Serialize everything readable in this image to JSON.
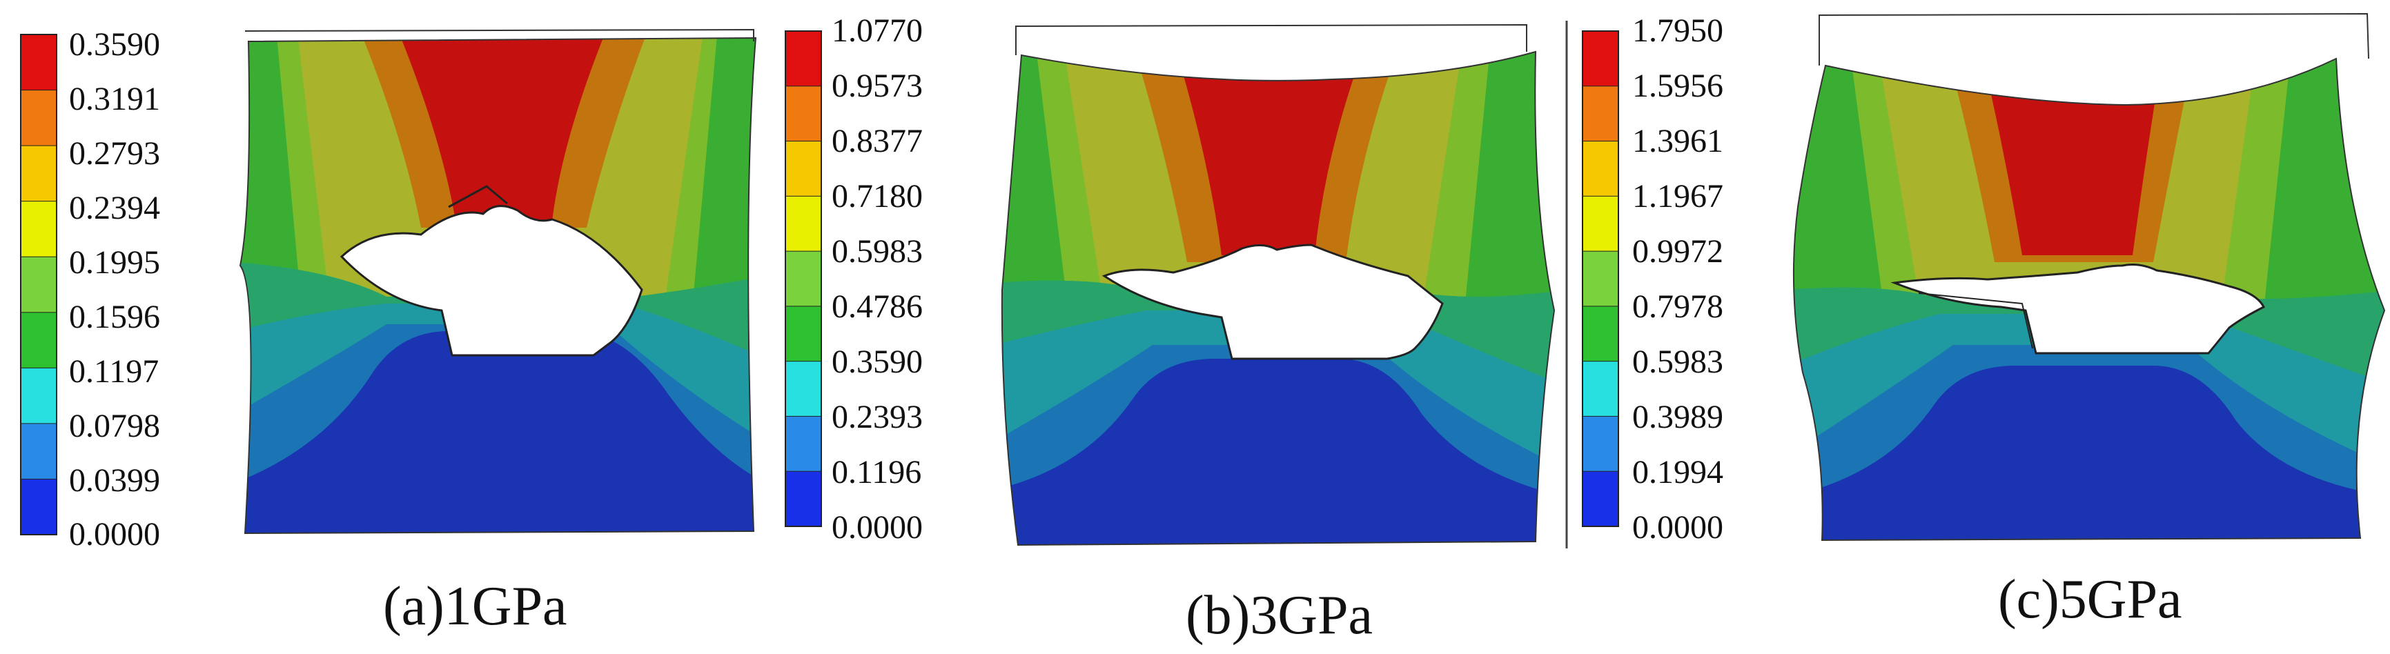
{
  "panels": [
    {
      "caption": "(a)1GPa",
      "legend_ticks": [
        "0.3590",
        "0.3191",
        "0.2793",
        "0.2394",
        "0.1995",
        "0.1596",
        "0.1197",
        "0.0798",
        "0.0399",
        "0.0000"
      ]
    },
    {
      "caption": "(b)3GPa",
      "legend_ticks": [
        "1.0770",
        "0.9573",
        "0.8377",
        "0.7180",
        "0.5983",
        "0.4786",
        "0.3590",
        "0.2393",
        "0.1196",
        "0.0000"
      ]
    },
    {
      "caption": "(c)5GPa",
      "legend_ticks": [
        "1.7950",
        "1.5956",
        "1.3961",
        "1.1967",
        "0.9972",
        "0.7978",
        "0.5983",
        "0.3989",
        "0.1994",
        "0.0000"
      ]
    }
  ],
  "legend_colors": [
    "#e01010",
    "#f07a10",
    "#f5c800",
    "#e8f000",
    "#7ad23c",
    "#2ec02e",
    "#28e0e0",
    "#2a8ae8",
    "#1830e8"
  ],
  "contour_colors": {
    "red": "#c4110f",
    "orange": "#c2740f",
    "yellow_green": "#a9b32c",
    "light_green": "#7cbc2c",
    "green": "#3aad33",
    "teal_green": "#28a46a",
    "teal": "#1f9aa3",
    "blue_teal": "#1b74b4",
    "blue": "#1a34b2"
  }
}
